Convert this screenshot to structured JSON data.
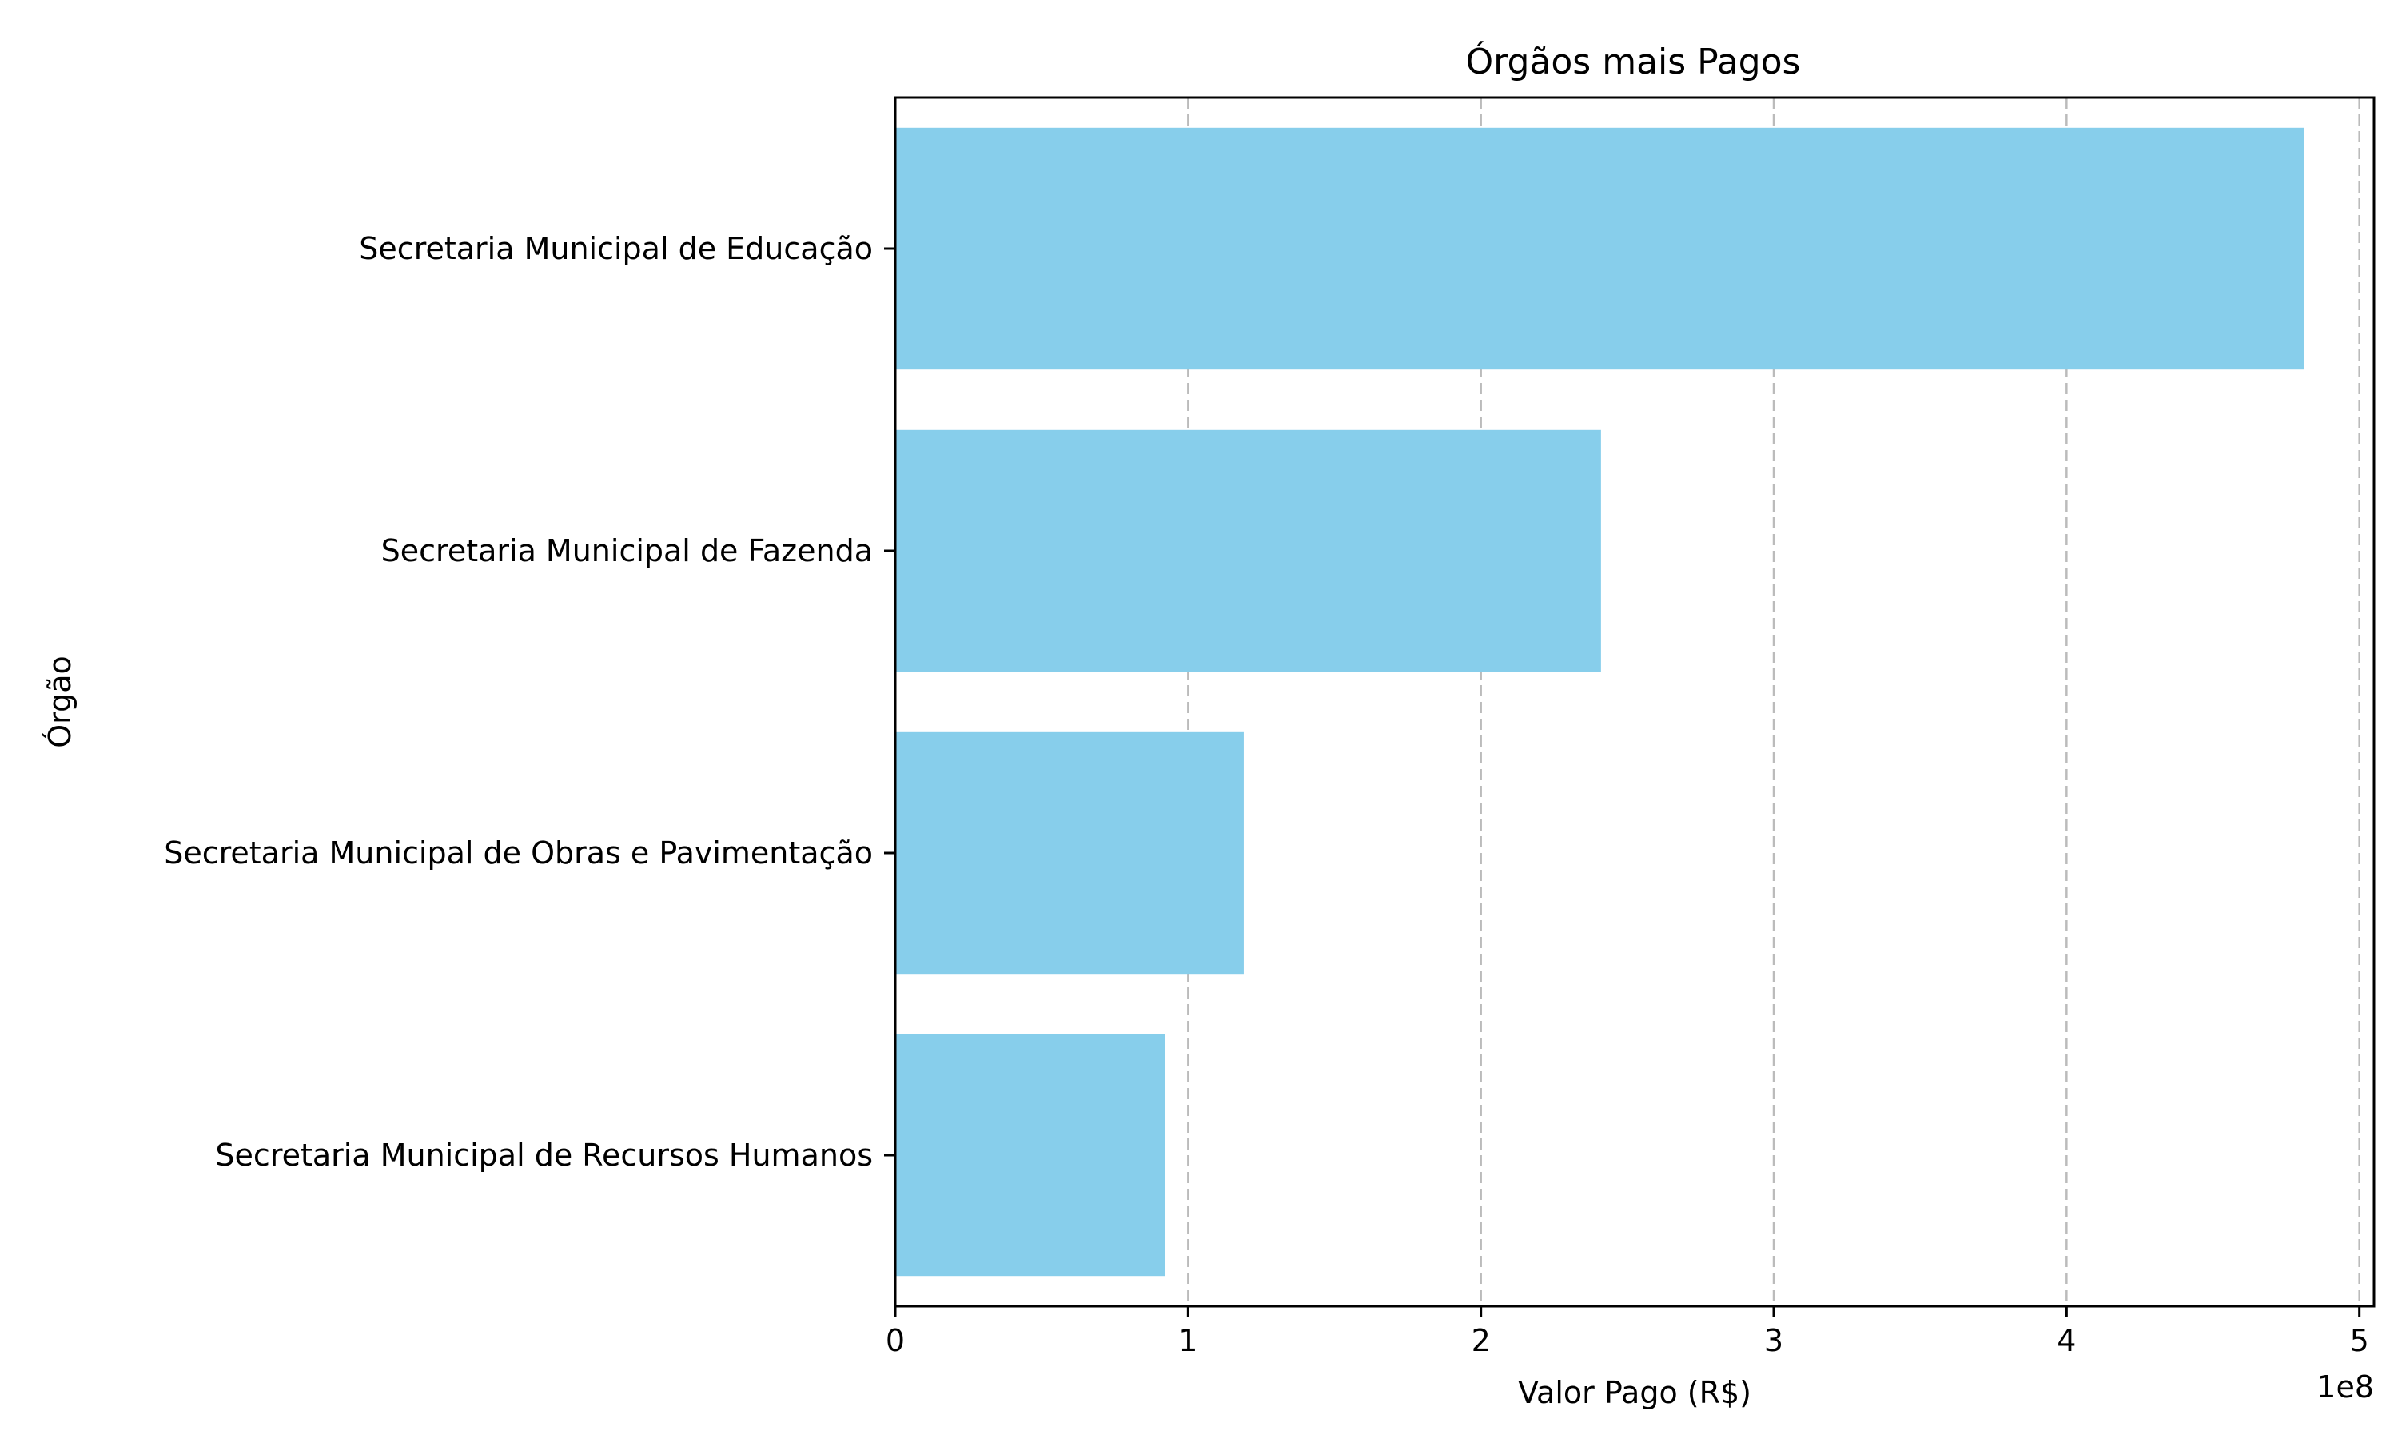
{
  "chart_data": {
    "type": "bar",
    "orientation": "horizontal",
    "title": "Órgãos mais Pagos",
    "xlabel": "Valor Pago (R$)",
    "ylabel": "Órgão",
    "x_offset_label": "1e8",
    "categories": [
      "Secretaria Municipal de Educação",
      "Secretaria Municipal de Fazenda",
      "Secretaria Municipal de Obras e Pavimentação",
      "Secretaria Municipal de Recursos Humanos"
    ],
    "values": [
      481000000,
      241000000,
      119000000,
      92000000
    ],
    "xlim": [
      0,
      505000000
    ],
    "xticks": [
      0,
      100000000,
      200000000,
      300000000,
      400000000,
      500000000
    ],
    "xtick_labels": [
      "0",
      "1",
      "2",
      "3",
      "4",
      "5"
    ],
    "bar_color": "#87CEEB",
    "grid": "x-axis, dashed",
    "legend": "none"
  }
}
